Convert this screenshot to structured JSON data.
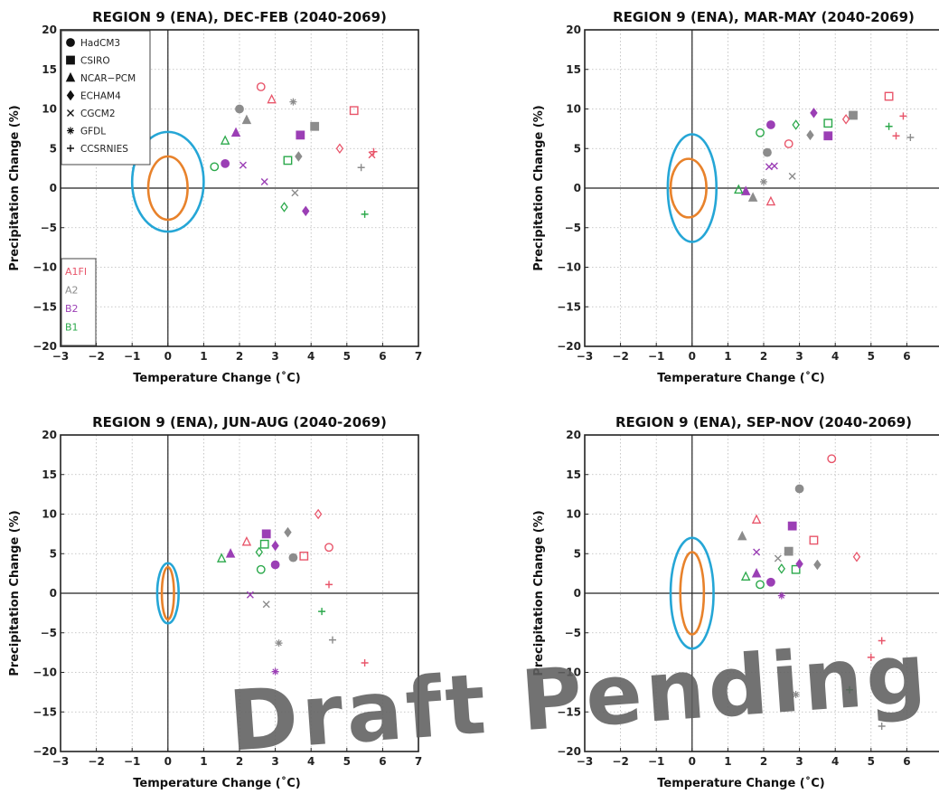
{
  "colors": {
    "A1FI": "#e8556a",
    "A2": "#8c8c8c",
    "B2": "#9b3fb5",
    "B1": "#2aa84a",
    "inner_ellipse": "#e8822b",
    "outer_ellipse": "#25a6d6"
  },
  "legend_models": [
    {
      "name": "HadCM3",
      "marker": "circle"
    },
    {
      "name": "CSIRO",
      "marker": "square"
    },
    {
      "name": "NCAR−PCM",
      "marker": "triangle"
    },
    {
      "name": "ECHAM4",
      "marker": "diamond"
    },
    {
      "name": "CGCM2",
      "marker": "x"
    },
    {
      "name": "GFDL",
      "marker": "asterisk"
    },
    {
      "name": "CCSRNIES",
      "marker": "plus"
    }
  ],
  "legend_scenarios": [
    "A1FI",
    "A2",
    "B2",
    "B1"
  ],
  "watermark": "Draft Pending",
  "chart_data": [
    {
      "type": "scatter",
      "title": "REGION 9 (ENA), DEC-FEB (2040-2069)",
      "xlabel": "Temperature Change (˚C)",
      "ylabel": "Precipitation Change (%)",
      "xlim": [
        -3,
        7
      ],
      "ylim": [
        -20,
        20
      ],
      "xticks": [
        -3,
        -2,
        -1,
        0,
        1,
        2,
        3,
        4,
        5,
        6,
        7
      ],
      "yticks": [
        -20,
        -15,
        -10,
        -5,
        0,
        5,
        10,
        15,
        20
      ],
      "grid": true,
      "ellipses": [
        {
          "name": "inner",
          "cx": 0.0,
          "cy": 0.0,
          "rx": 0.55,
          "ry": 4.0,
          "angle": 0
        },
        {
          "name": "outer",
          "cx": 0.0,
          "cy": 0.8,
          "rx": 1.0,
          "ry": 6.3,
          "angle": 0
        }
      ],
      "points": [
        {
          "model": "HadCM3",
          "scenario": "A1FI",
          "x": 2.6,
          "y": 12.8
        },
        {
          "model": "HadCM3",
          "scenario": "A2",
          "x": 2.0,
          "y": 10.0
        },
        {
          "model": "HadCM3",
          "scenario": "B2",
          "x": 1.6,
          "y": 3.1
        },
        {
          "model": "HadCM3",
          "scenario": "B1",
          "x": 1.3,
          "y": 2.7
        },
        {
          "model": "CSIRO",
          "scenario": "A1FI",
          "x": 5.2,
          "y": 9.8
        },
        {
          "model": "CSIRO",
          "scenario": "A2",
          "x": 4.1,
          "y": 7.8
        },
        {
          "model": "CSIRO",
          "scenario": "B2",
          "x": 3.7,
          "y": 6.7
        },
        {
          "model": "CSIRO",
          "scenario": "B1",
          "x": 3.35,
          "y": 3.5
        },
        {
          "model": "NCAR−PCM",
          "scenario": "A1FI",
          "x": 2.9,
          "y": 11.2
        },
        {
          "model": "NCAR−PCM",
          "scenario": "A2",
          "x": 2.2,
          "y": 8.6
        },
        {
          "model": "NCAR−PCM",
          "scenario": "B2",
          "x": 1.9,
          "y": 7.0
        },
        {
          "model": "NCAR−PCM",
          "scenario": "B1",
          "x": 1.6,
          "y": 6.0
        },
        {
          "model": "ECHAM4",
          "scenario": "A1FI",
          "x": 4.8,
          "y": 5.0
        },
        {
          "model": "ECHAM4",
          "scenario": "A2",
          "x": 3.65,
          "y": 4.0
        },
        {
          "model": "ECHAM4",
          "scenario": "B2",
          "x": 3.85,
          "y": -2.9
        },
        {
          "model": "ECHAM4",
          "scenario": "B1",
          "x": 3.25,
          "y": -2.4
        },
        {
          "model": "CGCM2",
          "scenario": "A1FI",
          "x": 5.7,
          "y": 4.2
        },
        {
          "model": "CGCM2",
          "scenario": "A2",
          "x": 3.55,
          "y": -0.6
        },
        {
          "model": "CGCM2",
          "scenario": "B2",
          "x": 2.1,
          "y": 2.9
        },
        {
          "model": "CGCM2",
          "scenario": "B2",
          "x": 2.7,
          "y": 0.8
        },
        {
          "model": "GFDL",
          "scenario": "A2",
          "x": 3.5,
          "y": 10.9
        },
        {
          "model": "CCSRNIES",
          "scenario": "A1FI",
          "x": 5.75,
          "y": 4.6
        },
        {
          "model": "CCSRNIES",
          "scenario": "A2",
          "x": 5.4,
          "y": 2.6
        },
        {
          "model": "CCSRNIES",
          "scenario": "B1",
          "x": 5.5,
          "y": -3.3
        }
      ]
    },
    {
      "type": "scatter",
      "title": "REGION 9 (ENA), MAR-MAY (2040-2069)",
      "xlabel": "Temperature Change (˚C)",
      "ylabel": "Precipitation Change (%)",
      "xlim": [
        -3,
        7
      ],
      "ylim": [
        -20,
        20
      ],
      "xticks": [
        -3,
        -2,
        -1,
        0,
        1,
        2,
        3,
        4,
        5,
        6
      ],
      "yticks": [
        -20,
        -15,
        -10,
        -5,
        0,
        5,
        10,
        15,
        20
      ],
      "grid": true,
      "ellipses": [
        {
          "name": "inner",
          "cx": -0.1,
          "cy": 0.0,
          "rx": 0.5,
          "ry": 3.7,
          "angle": 0
        },
        {
          "name": "outer",
          "cx": 0.0,
          "cy": 0.0,
          "rx": 0.68,
          "ry": 6.8,
          "angle": 0
        }
      ],
      "points": [
        {
          "model": "HadCM3",
          "scenario": "A1FI",
          "x": 2.7,
          "y": 5.6
        },
        {
          "model": "HadCM3",
          "scenario": "A2",
          "x": 2.1,
          "y": 4.5
        },
        {
          "model": "HadCM3",
          "scenario": "B2",
          "x": 2.2,
          "y": 8.0
        },
        {
          "model": "HadCM3",
          "scenario": "B1",
          "x": 1.9,
          "y": 7.0
        },
        {
          "model": "CSIRO",
          "scenario": "A1FI",
          "x": 5.5,
          "y": 11.6
        },
        {
          "model": "CSIRO",
          "scenario": "A2",
          "x": 4.5,
          "y": 9.2
        },
        {
          "model": "CSIRO",
          "scenario": "B2",
          "x": 3.8,
          "y": 6.6
        },
        {
          "model": "CSIRO",
          "scenario": "B1",
          "x": 3.8,
          "y": 8.2
        },
        {
          "model": "NCAR−PCM",
          "scenario": "A1FI",
          "x": 2.2,
          "y": -1.7
        },
        {
          "model": "NCAR−PCM",
          "scenario": "A2",
          "x": 1.7,
          "y": -1.2
        },
        {
          "model": "NCAR−PCM",
          "scenario": "B2",
          "x": 1.5,
          "y": -0.4
        },
        {
          "model": "NCAR−PCM",
          "scenario": "B1",
          "x": 1.3,
          "y": -0.2
        },
        {
          "model": "ECHAM4",
          "scenario": "A1FI",
          "x": 4.3,
          "y": 8.7
        },
        {
          "model": "ECHAM4",
          "scenario": "A2",
          "x": 3.3,
          "y": 6.7
        },
        {
          "model": "ECHAM4",
          "scenario": "B2",
          "x": 3.4,
          "y": 9.5
        },
        {
          "model": "ECHAM4",
          "scenario": "B1",
          "x": 2.9,
          "y": 8.0
        },
        {
          "model": "CGCM2",
          "scenario": "A2",
          "x": 2.8,
          "y": 1.5
        },
        {
          "model": "CGCM2",
          "scenario": "B2",
          "x": 2.3,
          "y": 2.8
        },
        {
          "model": "CGCM2",
          "scenario": "B2",
          "x": 2.15,
          "y": 2.7
        },
        {
          "model": "GFDL",
          "scenario": "A2",
          "x": 2.0,
          "y": 0.8
        },
        {
          "model": "CCSRNIES",
          "scenario": "A1FI",
          "x": 5.9,
          "y": 9.1
        },
        {
          "model": "CCSRNIES",
          "scenario": "A1FI",
          "x": 5.7,
          "y": 6.6
        },
        {
          "model": "CCSRNIES",
          "scenario": "A2",
          "x": 6.1,
          "y": 6.4
        },
        {
          "model": "CCSRNIES",
          "scenario": "B1",
          "x": 5.5,
          "y": 7.8
        }
      ]
    },
    {
      "type": "scatter",
      "title": "REGION 9 (ENA), JUN-AUG (2040-2069)",
      "xlabel": "Temperature Change (˚C)",
      "ylabel": "Precipitation Change (%)",
      "xlim": [
        -3,
        7
      ],
      "ylim": [
        -20,
        20
      ],
      "xticks": [
        -3,
        -2,
        -1,
        0,
        1,
        2,
        3,
        4,
        5,
        6,
        7
      ],
      "yticks": [
        -20,
        -15,
        -10,
        -5,
        0,
        5,
        10,
        15,
        20
      ],
      "grid": true,
      "ellipses": [
        {
          "name": "inner",
          "cx": 0.0,
          "cy": 0.0,
          "rx": 0.17,
          "ry": 3.3,
          "angle": 0
        },
        {
          "name": "outer",
          "cx": 0.0,
          "cy": 0.0,
          "rx": 0.3,
          "ry": 3.8,
          "angle": 0
        }
      ],
      "points": [
        {
          "model": "HadCM3",
          "scenario": "A1FI",
          "x": 4.5,
          "y": 5.8
        },
        {
          "model": "HadCM3",
          "scenario": "A2",
          "x": 3.5,
          "y": 4.5
        },
        {
          "model": "HadCM3",
          "scenario": "B2",
          "x": 3.0,
          "y": 3.6
        },
        {
          "model": "HadCM3",
          "scenario": "B1",
          "x": 2.6,
          "y": 3.0
        },
        {
          "model": "CSIRO",
          "scenario": "A1FI",
          "x": 3.8,
          "y": 4.7
        },
        {
          "model": "CSIRO",
          "scenario": "B2",
          "x": 2.75,
          "y": 7.5
        },
        {
          "model": "CSIRO",
          "scenario": "B1",
          "x": 2.7,
          "y": 6.2
        },
        {
          "model": "NCAR−PCM",
          "scenario": "A1FI",
          "x": 2.2,
          "y": 6.5
        },
        {
          "model": "NCAR−PCM",
          "scenario": "B2",
          "x": 1.75,
          "y": 5.0
        },
        {
          "model": "NCAR−PCM",
          "scenario": "B1",
          "x": 1.5,
          "y": 4.4
        },
        {
          "model": "ECHAM4",
          "scenario": "A1FI",
          "x": 4.2,
          "y": 10.0
        },
        {
          "model": "ECHAM4",
          "scenario": "A2",
          "x": 3.35,
          "y": 7.7
        },
        {
          "model": "ECHAM4",
          "scenario": "B2",
          "x": 3.0,
          "y": 6.0
        },
        {
          "model": "ECHAM4",
          "scenario": "B1",
          "x": 2.55,
          "y": 5.2
        },
        {
          "model": "CGCM2",
          "scenario": "A2",
          "x": 2.75,
          "y": -1.4
        },
        {
          "model": "CGCM2",
          "scenario": "B2",
          "x": 2.3,
          "y": -0.2
        },
        {
          "model": "GFDL",
          "scenario": "A2",
          "x": 3.1,
          "y": -6.3
        },
        {
          "model": "GFDL",
          "scenario": "B2",
          "x": 3.0,
          "y": -9.9
        },
        {
          "model": "CCSRNIES",
          "scenario": "A1FI",
          "x": 4.5,
          "y": 1.1
        },
        {
          "model": "CCSRNIES",
          "scenario": "A1FI",
          "x": 5.5,
          "y": -8.8
        },
        {
          "model": "CCSRNIES",
          "scenario": "A2",
          "x": 4.6,
          "y": -5.9
        },
        {
          "model": "CCSRNIES",
          "scenario": "B1",
          "x": 4.3,
          "y": -2.3
        }
      ]
    },
    {
      "type": "scatter",
      "title": "REGION 9 (ENA), SEP-NOV (2040-2069)",
      "xlabel": "Temperature Change (˚C)",
      "ylabel": "Precipitation Change (%)",
      "xlim": [
        -3,
        7
      ],
      "ylim": [
        -20,
        20
      ],
      "xticks": [
        -3,
        -2,
        -1,
        0,
        1,
        2,
        3,
        4,
        5,
        6
      ],
      "yticks": [
        -20,
        -15,
        -10,
        -5,
        0,
        5,
        10,
        15,
        20
      ],
      "grid": true,
      "ellipses": [
        {
          "name": "inner",
          "cx": 0.0,
          "cy": 0.0,
          "rx": 0.33,
          "ry": 5.2,
          "angle": 0
        },
        {
          "name": "outer",
          "cx": 0.0,
          "cy": 0.0,
          "rx": 0.6,
          "ry": 7.0,
          "angle": 0
        }
      ],
      "points": [
        {
          "model": "HadCM3",
          "scenario": "A1FI",
          "x": 3.9,
          "y": 17.0
        },
        {
          "model": "HadCM3",
          "scenario": "A2",
          "x": 3.0,
          "y": 13.2
        },
        {
          "model": "HadCM3",
          "scenario": "B2",
          "x": 2.2,
          "y": 1.4
        },
        {
          "model": "HadCM3",
          "scenario": "B1",
          "x": 1.9,
          "y": 1.1
        },
        {
          "model": "CSIRO",
          "scenario": "A1FI",
          "x": 3.4,
          "y": 6.7
        },
        {
          "model": "CSIRO",
          "scenario": "A2",
          "x": 2.7,
          "y": 5.3
        },
        {
          "model": "CSIRO",
          "scenario": "B2",
          "x": 2.8,
          "y": 8.5
        },
        {
          "model": "CSIRO",
          "scenario": "B1",
          "x": 2.9,
          "y": 3.0
        },
        {
          "model": "NCAR−PCM",
          "scenario": "A1FI",
          "x": 1.8,
          "y": 9.3
        },
        {
          "model": "NCAR−PCM",
          "scenario": "A2",
          "x": 1.4,
          "y": 7.2
        },
        {
          "model": "NCAR−PCM",
          "scenario": "B2",
          "x": 1.8,
          "y": 2.5
        },
        {
          "model": "NCAR−PCM",
          "scenario": "B1",
          "x": 1.5,
          "y": 2.1
        },
        {
          "model": "ECHAM4",
          "scenario": "A1FI",
          "x": 4.6,
          "y": 4.6
        },
        {
          "model": "ECHAM4",
          "scenario": "A2",
          "x": 3.5,
          "y": 3.6
        },
        {
          "model": "ECHAM4",
          "scenario": "B2",
          "x": 3.0,
          "y": 3.7
        },
        {
          "model": "ECHAM4",
          "scenario": "B1",
          "x": 2.5,
          "y": 3.1
        },
        {
          "model": "CGCM2",
          "scenario": "A2",
          "x": 2.4,
          "y": 4.4
        },
        {
          "model": "CGCM2",
          "scenario": "B2",
          "x": 1.8,
          "y": 5.2
        },
        {
          "model": "GFDL",
          "scenario": "A2",
          "x": 2.9,
          "y": -12.8
        },
        {
          "model": "GFDL",
          "scenario": "B2",
          "x": 2.5,
          "y": -0.3
        },
        {
          "model": "CCSRNIES",
          "scenario": "A1FI",
          "x": 5.3,
          "y": -6.0
        },
        {
          "model": "CCSRNIES",
          "scenario": "A1FI",
          "x": 5.0,
          "y": -8.1
        },
        {
          "model": "CCSRNIES",
          "scenario": "B1",
          "x": 4.4,
          "y": -12.2
        },
        {
          "model": "CCSRNIES",
          "scenario": "A2",
          "x": 5.3,
          "y": -16.8
        }
      ]
    }
  ]
}
